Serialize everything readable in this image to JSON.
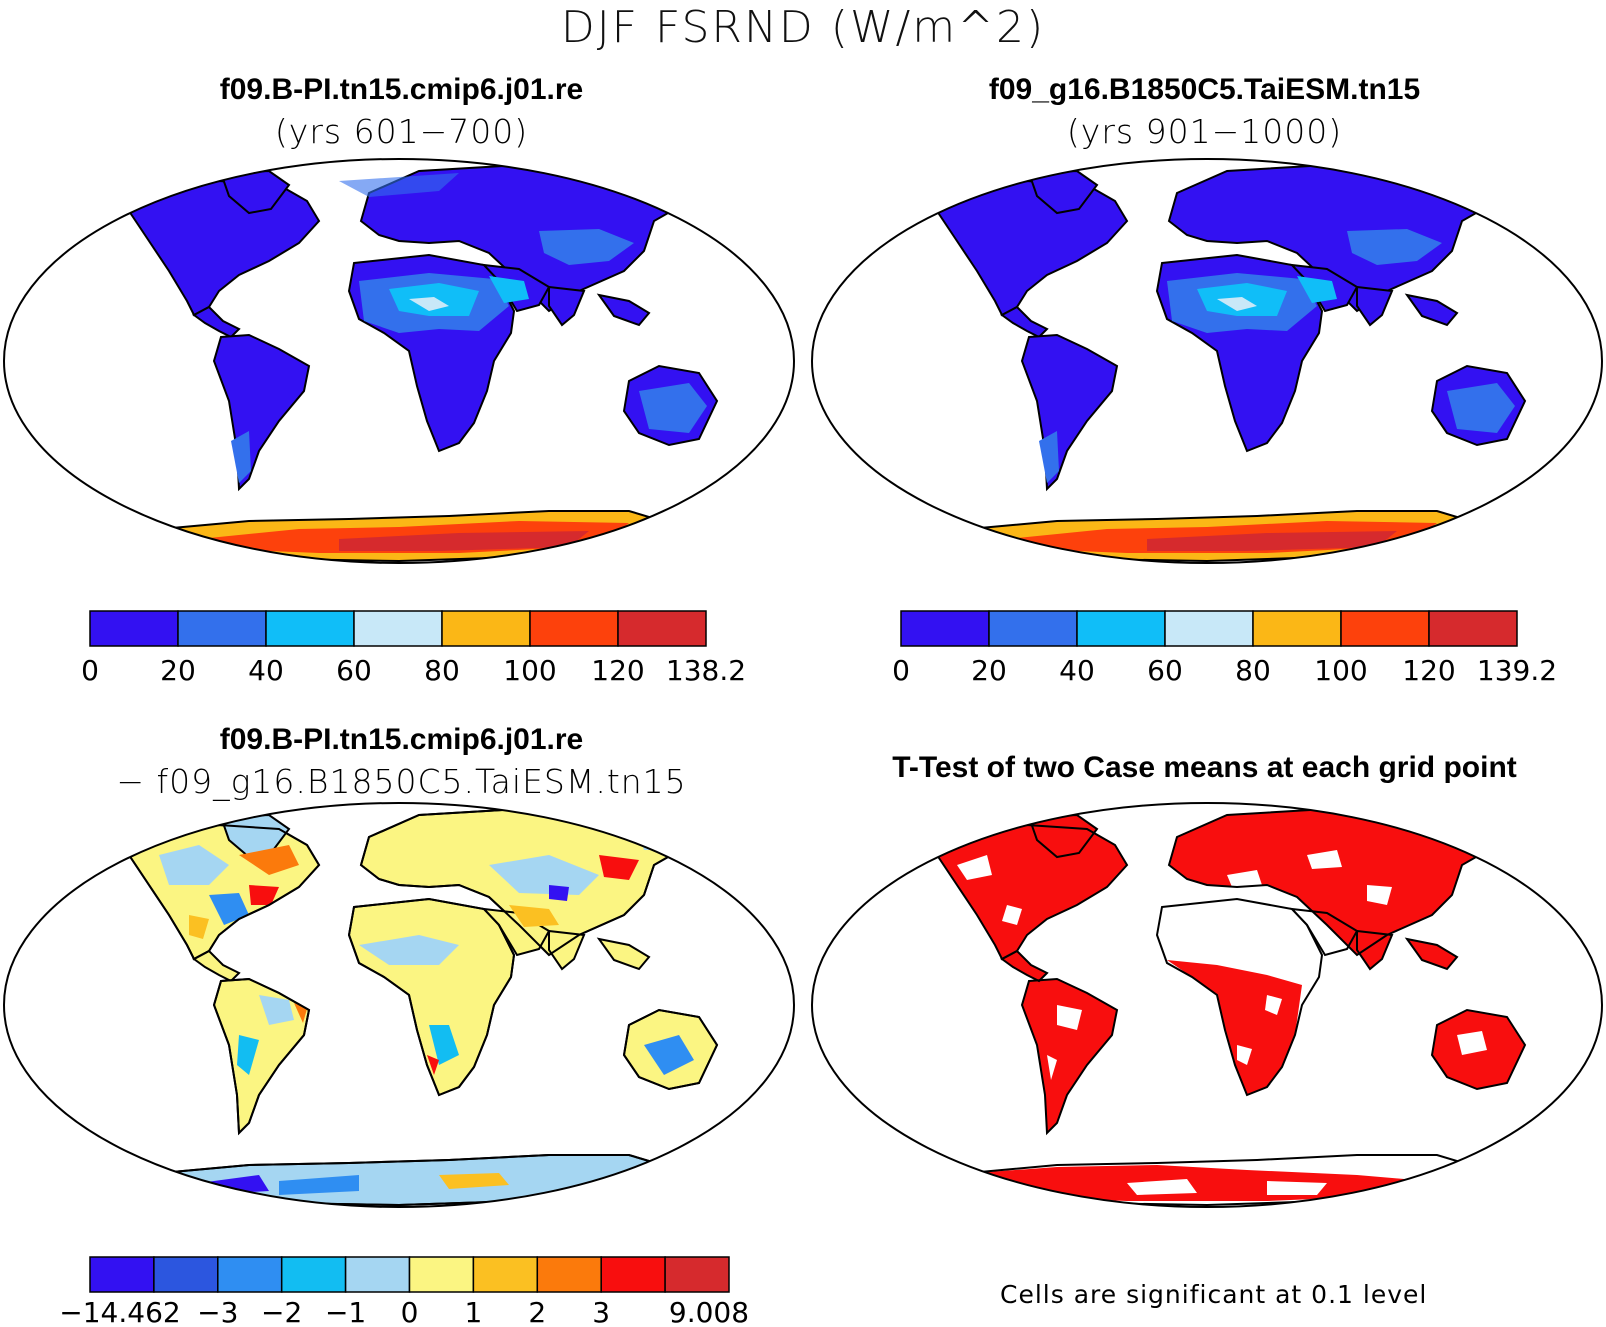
{
  "title": "DJF FSRND (W/m^2)",
  "panels": [
    {
      "id": "case1",
      "title_line1": "f09.B-PI.tn15.cmip6.j01.re",
      "title_line2": "(yrs 601−700)",
      "colorbar": {
        "colors": [
          "#3311f2",
          "#3370ec",
          "#10bef8",
          "#c8e8f8",
          "#fbb716",
          "#fd410c",
          "#d62a2d"
        ],
        "labels": [
          "0",
          "20",
          "40",
          "60",
          "80",
          "100",
          "120",
          "138.2"
        ]
      }
    },
    {
      "id": "case2",
      "title_line1": "f09_g16.B1850C5.TaiESM.tn15",
      "title_line2": "(yrs 901−1000)",
      "colorbar": {
        "colors": [
          "#3311f2",
          "#3370ec",
          "#10bef8",
          "#c8e8f8",
          "#fbb716",
          "#fd410c",
          "#d62a2d"
        ],
        "labels": [
          "0",
          "20",
          "40",
          "60",
          "80",
          "100",
          "120",
          "139.2"
        ]
      }
    },
    {
      "id": "difference",
      "title_line1": "f09.B-PI.tn15.cmip6.j01.re",
      "title_line2": "− f09_g16.B1850C5.TaiESM.tn15",
      "colorbar": {
        "colors": [
          "#3311f2",
          "#2c56df",
          "#2f8ef2",
          "#12bdf2",
          "#a5d6f2",
          "#fbf582",
          "#fbc022",
          "#fb7a0c",
          "#f80e0e",
          "#d62a2d"
        ],
        "labels": [
          "−14.462",
          "",
          "−3",
          "−2",
          "−1",
          "0",
          "1",
          "2",
          "3",
          "",
          "9.008"
        ]
      }
    },
    {
      "id": "ttest",
      "title_line1": "T-Test of two Case means at each grid point",
      "note": "Cells are significant at 0.1 level"
    }
  ]
}
